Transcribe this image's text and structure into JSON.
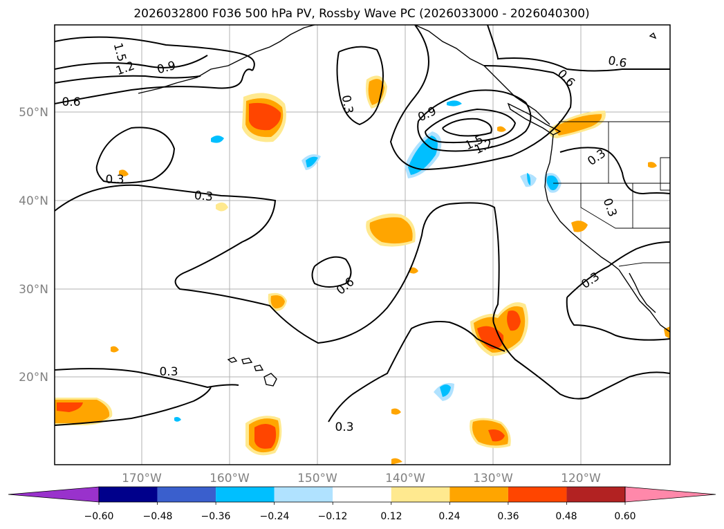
{
  "title": "2026032800 F036 500 hPa PV, Rossby Wave PC (2026033000 - 2026040300)",
  "lat_labels": [
    "50°N",
    "40°N",
    "30°N",
    "20°N"
  ],
  "lon_labels": [
    "170°W",
    "160°W",
    "150°W",
    "140°W",
    "130°W",
    "120°W"
  ],
  "contour_labels": [
    "1.5",
    "1.2",
    "0.9",
    "0.6",
    "0.3",
    "0.3",
    "0.3",
    "0.3",
    "0.6",
    "0.9",
    "0.6",
    "1.5",
    "1.2",
    "0.3",
    "0.3",
    "0.3",
    "0.6",
    "0.3"
  ],
  "colorbar": {
    "ticks": [
      "−0.60",
      "−0.48",
      "−0.36",
      "−0.24",
      "−0.12",
      "0.12",
      "0.24",
      "0.36",
      "0.48",
      "0.60"
    ],
    "colors": [
      "#9932cc",
      "#00008b",
      "#3a5fcd",
      "#00bfff",
      "#b0e2ff",
      "#ffffff",
      "#ffe98f",
      "#ffa500",
      "#ff4500",
      "#b22222",
      "#ff88aa"
    ]
  }
}
